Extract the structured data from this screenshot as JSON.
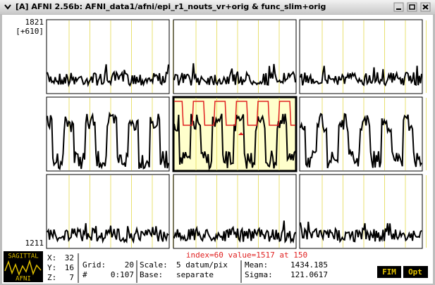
{
  "window": {
    "title": "[A] AFNI 2.56b: AFNI_data1/afni/epi_r1_nouts_vr+orig & func_slim+orig"
  },
  "graph": {
    "y_top": "1821",
    "y_range": "[+610]",
    "y_bottom": "1211",
    "status": "index=60 value=1517 at 150"
  },
  "info": {
    "x_label": "X:",
    "x": "32",
    "y_label": "Y:",
    "y": "16",
    "z_label": "Z:",
    "z": "7",
    "grid_label": "Grid:",
    "grid": "20",
    "index_label": "#",
    "index_range": "0:107",
    "scale_label": "Scale:",
    "scale": "5 datum/pix",
    "base_label": "Base:",
    "base": "separate",
    "mean_label": "Mean:",
    "mean": "1434.185",
    "sigma_label": "Sigma:",
    "sigma": "121.0617"
  },
  "logo": {
    "view": "SAGITTAL",
    "name": "AFNI"
  },
  "buttons": [
    "FIM",
    "Opt"
  ]
}
